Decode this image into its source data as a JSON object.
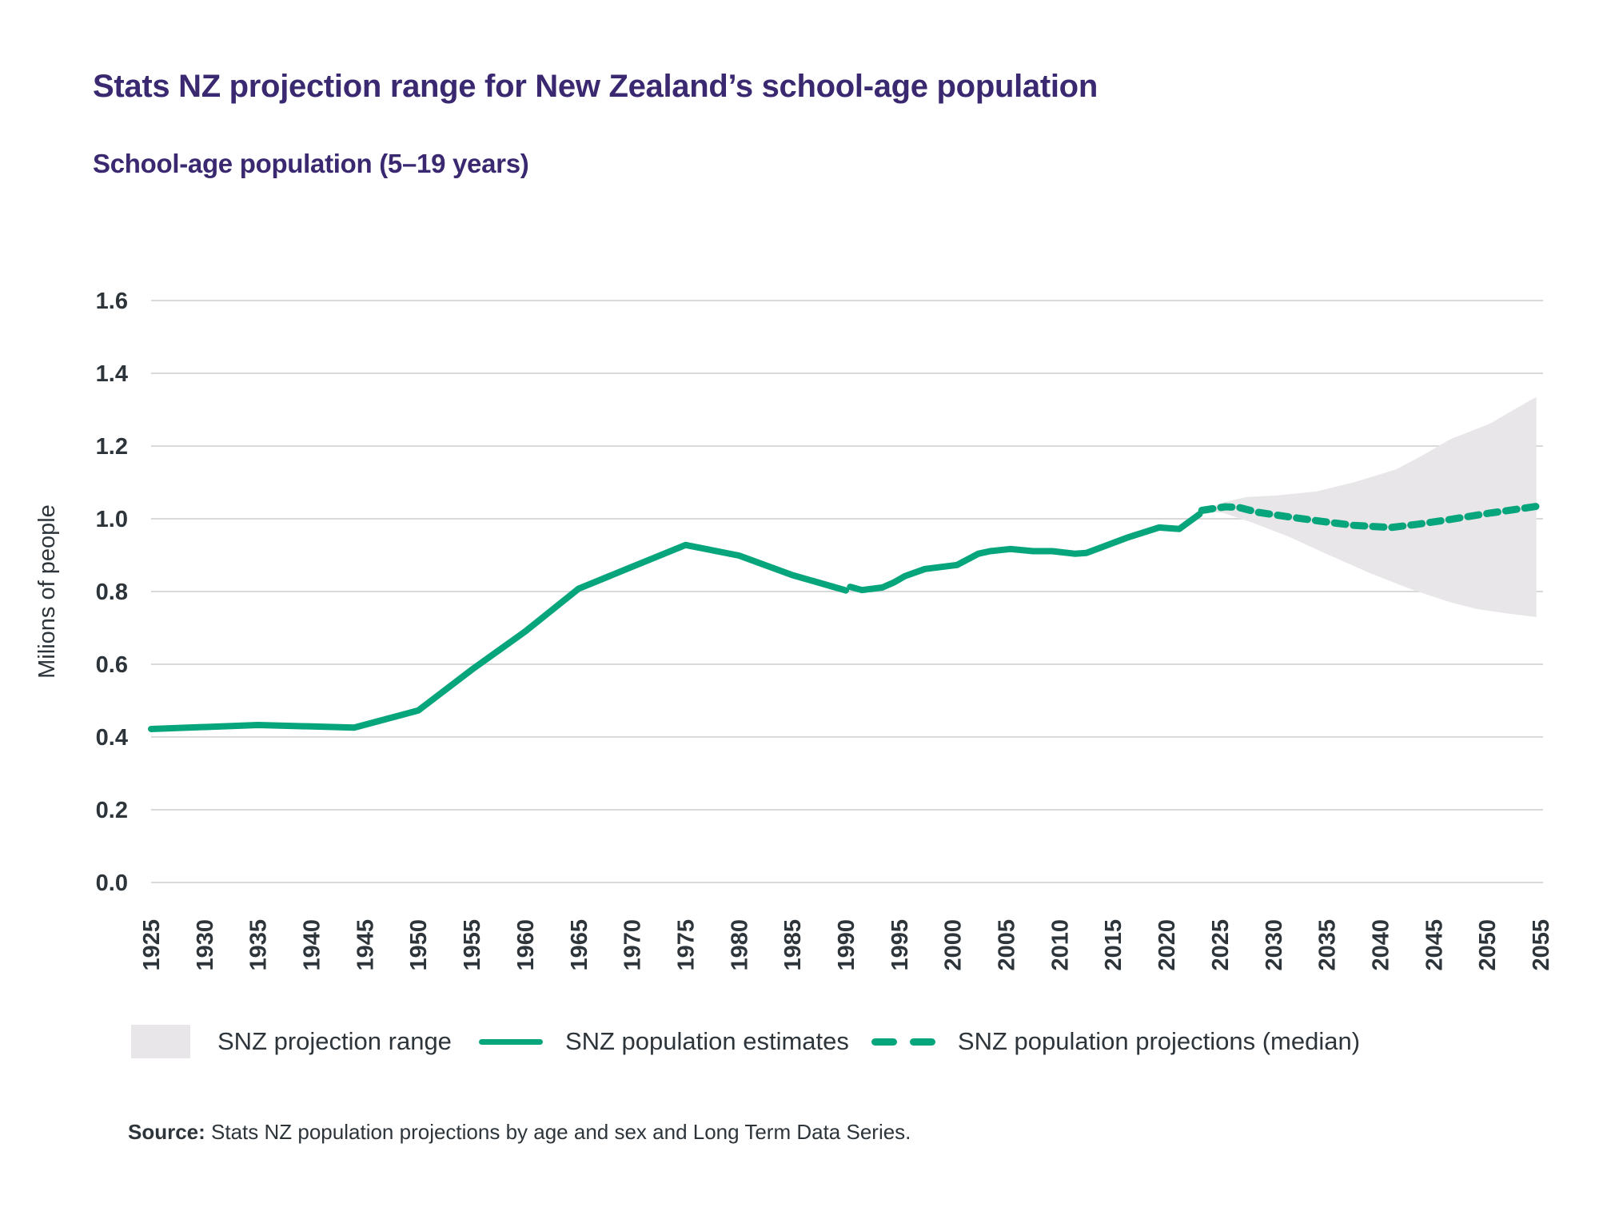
{
  "header": {
    "title": "Stats NZ projection range for New Zealand’s school-age population",
    "subtitle": "School-age population (5–19 years)"
  },
  "legend": {
    "range_label": "SNZ projection range",
    "estimates_label": "SNZ population estimates",
    "projections_label": "SNZ population projections (median)"
  },
  "source": {
    "label": "Source:",
    "text": " Stats NZ population projections by age and sex and Long Term Data Series."
  },
  "colors": {
    "title": "#3a2870",
    "line": "#07a57c",
    "range": "#e8e6e8",
    "grid": "#d9d9d9",
    "text": "#2d353b"
  },
  "chart_data": {
    "type": "line",
    "title": "Stats NZ projection range for New Zealand’s school-age population",
    "subtitle": "School-age population (5–19 years)",
    "xlabel": "",
    "ylabel": "Milions of people",
    "xlim": [
      1925,
      2055
    ],
    "ylim": [
      0,
      1.6
    ],
    "yticks": [
      "0.0",
      "0.2",
      "0.4",
      "0.6",
      "0.8",
      "1.0",
      "1.2",
      "1.4",
      "1.6"
    ],
    "ytick_values": [
      0,
      0.2,
      0.4,
      0.6,
      0.8,
      1.0,
      1.2,
      1.4,
      1.6
    ],
    "xticks": [
      "1925",
      "1930",
      "1935",
      "1940",
      "1945",
      "1950",
      "1955",
      "1960",
      "1965",
      "1970",
      "1975",
      "1980",
      "1985",
      "1990",
      "1995",
      "2000",
      "2005",
      "2010",
      "2015",
      "2020",
      "2025",
      "2030",
      "2035",
      "2040",
      "2045",
      "2050",
      "2055"
    ],
    "xtick_values": [
      1925,
      1930,
      1935,
      1940,
      1945,
      1950,
      1955,
      1960,
      1965,
      1970,
      1975,
      1980,
      1985,
      1990,
      1995,
      2000,
      2005,
      2010,
      2015,
      2020,
      2025,
      2030,
      2035,
      2040,
      2045,
      2050,
      2055
    ],
    "grid": "horizontal",
    "legend_position": "bottom",
    "series": [
      {
        "name": "SNZ population estimates",
        "style": "solid",
        "segments": [
          [
            [
              1925,
              0.422
            ],
            [
              1935,
              0.433
            ],
            [
              1944,
              0.426
            ],
            [
              1950,
              0.473
            ],
            [
              1955,
              0.585
            ],
            [
              1960,
              0.69
            ],
            [
              1965,
              0.808
            ],
            [
              1970,
              0.868
            ],
            [
              1975,
              0.928
            ],
            [
              1980,
              0.899
            ],
            [
              1985,
              0.845
            ],
            [
              1990,
              0.803
            ]
          ],
          [
            [
              1990.4,
              0.813
            ],
            [
              1991.5,
              0.804
            ],
            [
              1993.4,
              0.811
            ],
            [
              1994.5,
              0.825
            ],
            [
              1995.5,
              0.842
            ],
            [
              1997.4,
              0.862
            ],
            [
              2000.4,
              0.873
            ],
            [
              2002.4,
              0.904
            ],
            [
              2003.5,
              0.911
            ],
            [
              2005.4,
              0.917
            ],
            [
              2007.5,
              0.911
            ],
            [
              2009.3,
              0.911
            ],
            [
              2011.4,
              0.904
            ],
            [
              2012.5,
              0.906
            ],
            [
              2014.3,
              0.926
            ],
            [
              2016.3,
              0.948
            ],
            [
              2019.3,
              0.976
            ],
            [
              2021.2,
              0.972
            ],
            [
              2023.1,
              1.013
            ]
          ]
        ]
      },
      {
        "name": "SNZ population projections (median)",
        "style": "dashed",
        "points": [
          [
            2023.3,
            1.023
          ],
          [
            2025.5,
            1.033
          ],
          [
            2026.8,
            1.031
          ],
          [
            2028.5,
            1.018
          ],
          [
            2031.5,
            1.005
          ],
          [
            2034.5,
            0.993
          ],
          [
            2037.5,
            0.982
          ],
          [
            2041.0,
            0.976
          ],
          [
            2043.5,
            0.985
          ],
          [
            2046.5,
            0.998
          ],
          [
            2049.9,
            1.014
          ],
          [
            2052.7,
            1.026
          ],
          [
            2054.6,
            1.034
          ]
        ]
      }
    ],
    "range": {
      "name": "SNZ projection range",
      "upper": [
        [
          2023.3,
          1.023
        ],
        [
          2025.3,
          1.045
        ],
        [
          2027.5,
          1.06
        ],
        [
          2030.3,
          1.064
        ],
        [
          2034.0,
          1.075
        ],
        [
          2037.5,
          1.1
        ],
        [
          2041.5,
          1.136
        ],
        [
          2044.0,
          1.175
        ],
        [
          2046.5,
          1.218
        ],
        [
          2050.3,
          1.262
        ],
        [
          2052.5,
          1.3
        ],
        [
          2054.6,
          1.335
        ]
      ],
      "lower": [
        [
          2023.3,
          1.023
        ],
        [
          2025.3,
          1.016
        ],
        [
          2028.0,
          0.99
        ],
        [
          2031.5,
          0.95
        ],
        [
          2035.3,
          0.899
        ],
        [
          2039.0,
          0.851
        ],
        [
          2042.8,
          0.807
        ],
        [
          2046.5,
          0.771
        ],
        [
          2049.0,
          0.752
        ],
        [
          2051.5,
          0.741
        ],
        [
          2054.6,
          0.73
        ]
      ]
    }
  }
}
